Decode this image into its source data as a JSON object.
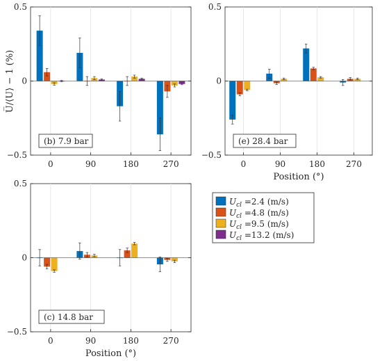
{
  "y_axis_title": "U̅/⟨U⟩ − 1 (%)",
  "x_axis_title": "Position (°)",
  "legend": {
    "position": "right of bottom-left panel",
    "entries": [
      {
        "label": "U_cl =2.4 (m/s)",
        "sym": "U",
        "sub": "cl",
        "text": " =2.4 (m/s)",
        "color": "#0072BD"
      },
      {
        "label": "U_cl =4.8 (m/s)",
        "sym": "U",
        "sub": "cl",
        "text": " =4.8 (m/s)",
        "color": "#D95319"
      },
      {
        "label": "U_cl =9.5 (m/s)",
        "sym": "U",
        "sub": "cl",
        "text": " =9.5 (m/s)",
        "color": "#EDB120"
      },
      {
        "label": "U_cl =13.2 (m/s)",
        "sym": "U",
        "sub": "cl",
        "text": " =13.2 (m/s)",
        "color": "#7E2F8E"
      }
    ]
  },
  "chart_data": [
    {
      "type": "bar",
      "label": "(b)  7.9 bar",
      "categories": [
        "0",
        "90",
        "180",
        "270"
      ],
      "ylim": [
        -0.5,
        0.5
      ],
      "yticks": [
        "0.5",
        "0",
        "−0.5"
      ],
      "xlabel": "",
      "grid": "vertical",
      "series": [
        {
          "name": "U_cl =2.4 (m/s)",
          "values": [
            0.34,
            0.19,
            -0.17,
            -0.36
          ],
          "errors": [
            0.1,
            0.1,
            0.1,
            0.11
          ]
        },
        {
          "name": "U_cl =4.8 (m/s)",
          "values": [
            0.06,
            0.0,
            0.0,
            -0.07
          ],
          "errors": [
            0.025,
            0.03,
            0.03,
            0.04
          ]
        },
        {
          "name": "U_cl =9.5 (m/s)",
          "values": [
            -0.02,
            0.02,
            0.03,
            -0.03
          ],
          "errors": [
            0.008,
            0.01,
            0.01,
            0.01
          ]
        },
        {
          "name": "U_cl =13.2 (m/s)",
          "values": [
            0.0,
            0.01,
            0.015,
            -0.02
          ],
          "errors": [
            0.004,
            0.004,
            0.005,
            0.005
          ]
        }
      ]
    },
    {
      "type": "bar",
      "label": "(e)  28.4 bar",
      "categories": [
        "0",
        "90",
        "180",
        "270"
      ],
      "ylim": [
        -0.5,
        0.5
      ],
      "yticks": [
        "0.5",
        "0",
        "−0.5"
      ],
      "xlabel": "Position (°)",
      "grid": "vertical",
      "series": [
        {
          "name": "U_cl =2.4 (m/s)",
          "values": [
            -0.26,
            0.05,
            0.22,
            -0.01
          ],
          "errors": [
            0.03,
            0.03,
            0.03,
            0.02
          ]
        },
        {
          "name": "U_cl =4.8 (m/s)",
          "values": [
            -0.09,
            -0.015,
            0.085,
            0.015
          ],
          "errors": [
            0.01,
            0.008,
            0.008,
            0.008
          ]
        },
        {
          "name": "U_cl =9.5 (m/s)",
          "values": [
            -0.06,
            0.015,
            0.025,
            0.015
          ],
          "errors": [
            0.005,
            0.005,
            0.005,
            0.005
          ]
        }
      ]
    },
    {
      "type": "bar",
      "label": "(c)  14.8 bar",
      "categories": [
        "0",
        "90",
        "180",
        "270"
      ],
      "ylim": [
        -0.5,
        0.5
      ],
      "yticks": [
        "0.5",
        "0",
        "−0.5"
      ],
      "xlabel": "Position (°)",
      "grid": "vertical",
      "series": [
        {
          "name": "U_cl =2.4 (m/s)",
          "values": [
            0.0,
            0.045,
            0.0,
            -0.045
          ],
          "errors": [
            0.055,
            0.055,
            0.055,
            0.05
          ]
        },
        {
          "name": "U_cl =4.8 (m/s)",
          "values": [
            -0.06,
            0.02,
            0.05,
            -0.015
          ],
          "errors": [
            0.015,
            0.015,
            0.015,
            0.01
          ]
        },
        {
          "name": "U_cl =9.5 (m/s)",
          "values": [
            -0.09,
            0.015,
            0.095,
            -0.025
          ],
          "errors": [
            0.008,
            0.008,
            0.008,
            0.008
          ]
        }
      ]
    }
  ]
}
